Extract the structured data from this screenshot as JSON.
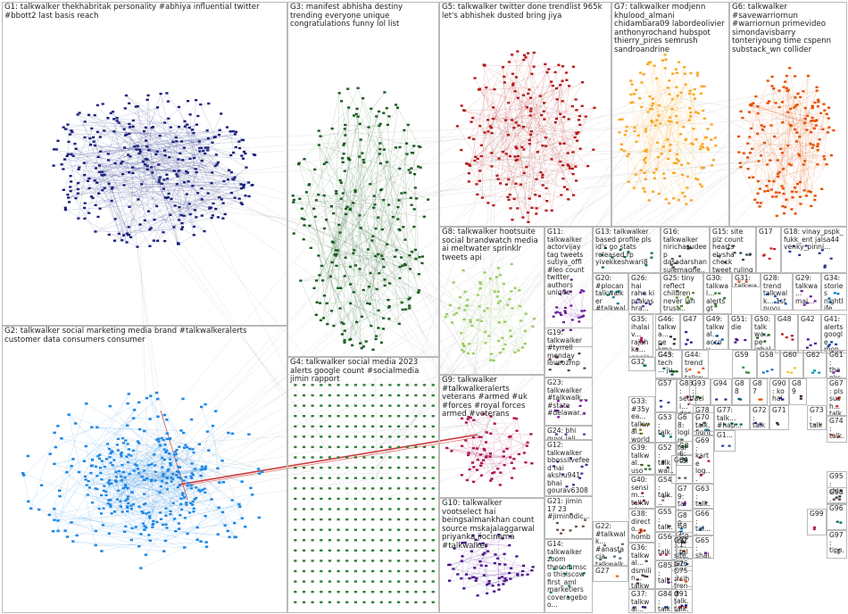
{
  "groups": [
    {
      "id": "G1",
      "label": "G1: talkwalker thekhabritak personality #abhiya influential twitter #bbott2 last basis reach",
      "color": "#1a237e"
    },
    {
      "id": "G2",
      "label": "G2: talkwalker social marketing media brand #talkwalkeralerts customer data consumers consumer",
      "color": "#1e88e5"
    },
    {
      "id": "G3",
      "label": "G3: manifest abhisha destiny trending everyone unique congratulations funny lol list",
      "color": "#1b5e20"
    },
    {
      "id": "G4",
      "label": "G4: talkwalker social media 2023 alerts google count #socialmedia jimin rapport",
      "color": "#2e7d32"
    },
    {
      "id": "G5",
      "label": "G5: talkwalker twitter done trendlist 965k let's abhishek dusted bring jiya",
      "color": "#b71c1c"
    },
    {
      "id": "G6",
      "label": "G6: talkwalker #savewarriornun #warriornun primevideo simondavisbarry tonteriyoung time cspenn substack_wn collider",
      "color": "#e65100"
    },
    {
      "id": "G7",
      "label": "G7: talkwalker modjenn khulood_almani chidambara09 labordeolivier anthonyrochand hubspot thierry_pires semrush sandroandrine",
      "color": "#f9a825"
    },
    {
      "id": "G8",
      "label": "G8: talkwalker hootsuite social brandwatch media ai meltwater sprinklr tweets api",
      "color": "#9ccc65"
    },
    {
      "id": "G9",
      "label": "G9: talkwalker #talkwalkeralerts veterans #armed #uk #forces #royal forces armed #veterans",
      "color": "#ad1457"
    },
    {
      "id": "G10",
      "label": "G10: talkwalker vootselect hai beingsalmankhan count source mskajalaggarwal priyanka jiocinema #talkwalker",
      "color": "#4a148c"
    },
    {
      "id": "G11",
      "label": "G11: talkwalker actorvijay tag tweets sutiya_offl #leo count twitter authors unique",
      "color": "#6a1b9a"
    },
    {
      "id": "G12",
      "label": "G12: talkwalker bbosslivefeed hai akshu941 bhai gourav63081 sarfraz42486",
      "color": "#4527a0"
    },
    {
      "id": "G13",
      "label": "G13: talkwalker based profile pls id's go stats released rp yivekkeshwari8",
      "color": "#00695c"
    },
    {
      "id": "G14",
      "label": "G14: talkwalker zoom thecommsco thisiscow first_aml marketiers coverageboo...",
      "color": "#00897b"
    },
    {
      "id": "G15",
      "label": "G15: site plz count hearts elysha check tweet ruling talkwalker_...",
      "color": "#37474f"
    },
    {
      "id": "G16",
      "label": "G16: talkwalker nirichasudeep dasadarshan sulemagne...",
      "color": "#455a64"
    },
    {
      "id": "G17",
      "label": "G17",
      "color": "#c62828"
    },
    {
      "id": "G18",
      "label": "G18: vinay_pspk_ fukk_ent jalsa44 venky_pinni...",
      "color": "#283593"
    },
    {
      "id": "G19",
      "label": "G19: talkwalker #tyrrell monday loveozmp",
      "color": "#5d4037"
    },
    {
      "id": "G20",
      "label": "G20: #plocan talkwalker #talkwalk... plocan entrar...",
      "color": "#00838f"
    },
    {
      "id": "G21",
      "label": "G21: jimin 17 23 #jiminodic...",
      "color": "#6d4c41"
    },
    {
      "id": "G22",
      "label": "G22: #talkwalk... #anastacia talkwalker tweets",
      "color": "#546e7a"
    },
    {
      "id": "G23",
      "label": "G23: talkwalker #talkwalk... #state #delawar...",
      "color": "#7b1fa2"
    },
    {
      "id": "G24",
      "label": "G24: bhi guys jali trend toh",
      "color": "#3949ab"
    },
    {
      "id": "G25",
      "label": "G25: tiny reflect children never lan trust...",
      "color": "#558b2f"
    },
    {
      "id": "G26",
      "label": "G26: hai raha ki prakashra...",
      "color": "#5e35b1"
    },
    {
      "id": "G27",
      "label": "G27",
      "color": "#ef6c00"
    },
    {
      "id": "G28",
      "label": "G28: trend talkwalk... 1st nuvu arndpol... ra...",
      "color": "#1565c0"
    },
    {
      "id": "G29",
      "label": "G29: talkwa... mai...",
      "color": "#6a1b9a"
    },
    {
      "id": "G30",
      "label": "G30: talkwal... alerts gt chivers... buzzsu...",
      "color": "#2e7d32"
    },
    {
      "id": "G31",
      "label": "G31: talkwa... dv...",
      "color": "#d84315"
    },
    {
      "id": "G32",
      "label": "G32",
      "color": "#00695c"
    },
    {
      "id": "G33",
      "label": "G33: #35yea... talkwal... worldw... spot...",
      "color": "#827717"
    },
    {
      "id": "G34",
      "label": "G34: stories nightlife vegas talkwa...",
      "color": "#0277bd"
    },
    {
      "id": "G35",
      "label": "G35: ihalaiv... rajahka... engine... theblac...",
      "color": "#ad1457"
    },
    {
      "id": "G36",
      "label": "G36: talkwal... dsmilin... talkwalk...",
      "color": "#4e342e"
    },
    {
      "id": "G37",
      "label": "G37: talkwal... #tal...",
      "color": "#1a237e"
    },
    {
      "id": "G38",
      "label": "G38: directo... homba... nagash...",
      "color": "#bf360c"
    },
    {
      "id": "G39",
      "label": "G39: talkwal... uso basica...",
      "color": "#33691e"
    },
    {
      "id": "G40",
      "label": "G40: sensim... talkwal... optimiz...",
      "color": "#880e4f"
    },
    {
      "id": "G41",
      "label": "G41: alerts google mon... talkwa...",
      "color": "#0d47a1"
    },
    {
      "id": "G42",
      "label": "G42",
      "color": "#4a148c"
    },
    {
      "id": "G43",
      "label": "G43",
      "color": "#1b5e20"
    },
    {
      "id": "G44",
      "label": "G44: trends talkwal... jiyayo...",
      "color": "#e65100"
    },
    {
      "id": "G45",
      "label": "G45: tech ... ju...",
      "color": "#006064"
    },
    {
      "id": "G46",
      "label": "G46: talkwa... pe kma...",
      "color": "#3e2723"
    },
    {
      "id": "G47",
      "label": "G47",
      "color": "#311b92"
    },
    {
      "id": "G48",
      "label": "G48",
      "color": "#b71c1c"
    },
    {
      "id": "G49",
      "label": "G49: talkwal... accou... 2018...",
      "color": "#01579b"
    },
    {
      "id": "G50",
      "label": "G50: talkwa... pe igbalk...",
      "color": "#1b5e20"
    },
    {
      "id": "G51",
      "label": "G51: die",
      "color": "#4a148c"
    },
    {
      "id": "G52",
      "label": "G52: talkwal... soci... ne... die",
      "color": "#263238"
    },
    {
      "id": "G53",
      "label": "G53: talk... worl...",
      "color": "#00695c"
    },
    {
      "id": "G54",
      "label": "G54: talk... gra...",
      "color": "#8d6e63"
    },
    {
      "id": "G55",
      "label": "G55: talk... bro...",
      "color": "#5d4037"
    },
    {
      "id": "G56",
      "label": "G56: talk... 13...",
      "color": "#c2185b"
    },
    {
      "id": "G57",
      "label": "G57",
      "color": "#303f9f"
    },
    {
      "id": "G58",
      "label": "G58",
      "color": "#1976d2"
    },
    {
      "id": "G59",
      "label": "G59",
      "color": "#388e3c"
    },
    {
      "id": "G60",
      "label": "G60",
      "color": "#fbc02d"
    },
    {
      "id": "G61",
      "label": "G61: thanks",
      "color": "#7b1fa2"
    },
    {
      "id": "G62",
      "label": "G62",
      "color": "#0097a7"
    },
    {
      "id": "G63",
      "label": "G63: talk... kan",
      "color": "#5d4037"
    },
    {
      "id": "G64",
      "label": "G64",
      "color": "#455a64"
    },
    {
      "id": "G65",
      "label": "G65: shal... talk...",
      "color": "#6a1b9a"
    },
    {
      "id": "G66",
      "label": "G66: tal... log...",
      "color": "#1565c0"
    },
    {
      "id": "G67",
      "label": "G67: pls sush... talkwa...",
      "color": "#c62828"
    },
    {
      "id": "G68",
      "label": "G68: login talk... kha... vi...",
      "color": "#2e7d32"
    },
    {
      "id": "G69",
      "label": "G69: karte log... talk...",
      "color": "#ad1457"
    },
    {
      "id": "G70",
      "label": "G70: fight doe... talk...",
      "color": "#00838f"
    },
    {
      "id": "G71",
      "label": "G71",
      "color": "#4e342e"
    },
    {
      "id": "G72",
      "label": "G72: talk...",
      "color": "#283593"
    },
    {
      "id": "G73",
      "label": "G73: talk...",
      "color": "#558b2f"
    },
    {
      "id": "G74",
      "label": "G74: talk...",
      "color": "#d84315"
    },
    {
      "id": "G75",
      "label": "G75: trend talk... site...",
      "color": "#1a237e"
    },
    {
      "id": "G76",
      "label": "G76: #sih... #sh... talk...",
      "color": "#e65100"
    },
    {
      "id": "G77",
      "label": "G77: talk... #hap...",
      "color": "#00695c"
    },
    {
      "id": "G78",
      "label": "G78: talk...",
      "color": "#6d4c41"
    },
    {
      "id": "G79",
      "label": "G79: talk... offe... toh",
      "color": "#7b1fa2"
    },
    {
      "id": "G80",
      "label": "G80",
      "color": "#0277bd"
    },
    {
      "id": "G81",
      "label": "G81: talk... kum... trend",
      "color": "#bf360c"
    },
    {
      "id": "G82",
      "label": "G82: talk... ba...",
      "color": "#33691e"
    },
    {
      "id": "G83",
      "label": "G83: setti... dare... talk...",
      "color": "#880e4f"
    },
    {
      "id": "G84",
      "label": "G84: talk... dav...",
      "color": "#0d47a1"
    },
    {
      "id": "G85",
      "label": "G85: talk... grou...",
      "color": "#4a148c"
    },
    {
      "id": "G86",
      "label": "G86: talk...",
      "color": "#1b5e20"
    },
    {
      "id": "G87",
      "label": "G87",
      "color": "#e65100"
    },
    {
      "id": "G88",
      "label": "G88",
      "color": "#006064"
    },
    {
      "id": "G89",
      "label": "G89",
      "color": "#3e2723"
    },
    {
      "id": "G90",
      "label": "G90: ko hain...",
      "color": "#311b92"
    },
    {
      "id": "G91",
      "label": "G91: talk...",
      "color": "#b71c1c"
    },
    {
      "id": "G92",
      "label": "G92: site plz count",
      "color": "#01579b"
    },
    {
      "id": "G93",
      "label": "G93: facing mai...",
      "color": "#1b5e20"
    },
    {
      "id": "G94",
      "label": "G94",
      "color": "#4a148c"
    },
    {
      "id": "G95",
      "label": "G95: shi... bat...",
      "color": "#263238"
    },
    {
      "id": "G96",
      "label": "G96",
      "color": "#00695c"
    },
    {
      "id": "G97",
      "label": "G97: tipo...",
      "color": "#8d6e63"
    },
    {
      "id": "G98",
      "label": "G98",
      "color": "#5d4037"
    },
    {
      "id": "G99",
      "label": "G99",
      "color": "#c2185b"
    },
    {
      "id": "G1.",
      "label": "G1...",
      "color": "#303f9f"
    }
  ]
}
